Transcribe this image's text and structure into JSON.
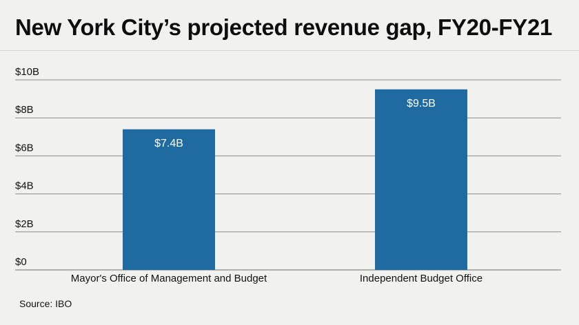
{
  "title": "New York City’s projected revenue gap, FY20-FY21",
  "source": "Source: IBO",
  "colors": {
    "background": "#f1f2f0",
    "bar": "#1f6aa1",
    "grid": "#8b8d8b",
    "text": "#111111"
  },
  "chart_data": {
    "type": "bar",
    "categories": [
      "Mayor's Office of Management and Budget",
      "Independent Budget Office"
    ],
    "values": [
      7.4,
      9.5
    ],
    "value_labels": [
      "$7.4B",
      "$9.5B"
    ],
    "title": "New York City’s projected revenue gap, FY20-FY21",
    "xlabel": "",
    "ylabel": "",
    "ylim": [
      0,
      10
    ],
    "yticks": [
      0,
      2,
      4,
      6,
      8,
      10
    ],
    "ytick_labels": [
      "$0",
      "$2B",
      "$4B",
      "$6B",
      "$8B",
      "$10B"
    ],
    "grid": true,
    "legend": "none"
  }
}
